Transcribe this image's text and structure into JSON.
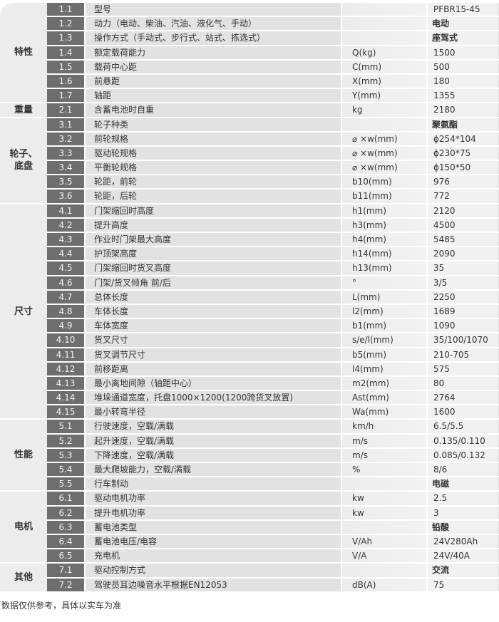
{
  "groups": [
    {
      "label": "特性",
      "rows": [
        [
          "1.1",
          "型号",
          "",
          "PFBR15-45"
        ],
        [
          "1.2",
          "动力（电动、柴油、汽油、液化气、手动）",
          "",
          "电动"
        ],
        [
          "1.3",
          "操作方式（手动式、步行式、站式、拣选式）",
          "",
          "座驾式"
        ],
        [
          "1.4",
          "额定载荷能力",
          "Q(kg)",
          "1500"
        ],
        [
          "1.5",
          "载荷中心距",
          "C(mm)",
          "500"
        ],
        [
          "1.6",
          "前悬距",
          "X(mm)",
          "180"
        ],
        [
          "1.7",
          "轴距",
          "Y(mm)",
          "1355"
        ]
      ]
    },
    {
      "label": "重量",
      "rows": [
        [
          "2.1",
          "含蓄电池时自重",
          "kg",
          "2180"
        ]
      ]
    },
    {
      "label": "轮子、\n底盘",
      "rows": [
        [
          "3.1",
          "轮子种类",
          "",
          "聚氨酯"
        ],
        [
          "3.2",
          "前轮规格",
          "⌀ ×w(mm)",
          "ϕ254*104"
        ],
        [
          "3.3",
          "驱动轮规格",
          "⌀ ×w(mm)",
          "ϕ230*75"
        ],
        [
          "3.4",
          "平衡轮规格",
          "⌀ ×w(mm)",
          "ϕ150*50"
        ],
        [
          "3.5",
          "轮距，前轮",
          "b10(mm)",
          "976"
        ],
        [
          "3.6",
          "轮距，后轮",
          "b11(mm)",
          "772"
        ]
      ]
    },
    {
      "label": "尺寸",
      "rows": [
        [
          "4.1",
          "门架缩回时高度",
          "h1(mm)",
          "2120"
        ],
        [
          "4.2",
          "提升高度",
          "h3(mm)",
          "4500"
        ],
        [
          "4.3",
          "作业时门架最大高度",
          "h4(mm)",
          "5485"
        ],
        [
          "4.4",
          "护顶架高度",
          "h14(mm)",
          "2090"
        ],
        [
          "4.5",
          "门架缩回时货叉高度",
          "h13(mm)",
          "35"
        ],
        [
          "4.6",
          "门架/货叉倾角 前/后",
          "°",
          "3/5"
        ],
        [
          "4.7",
          "总体长度",
          "L(mm)",
          "2250"
        ],
        [
          "4.8",
          "车体长度",
          "l2(mm)",
          "1689"
        ],
        [
          "4.9",
          "车体宽度",
          "b1(mm)",
          "1090"
        ],
        [
          "4.10",
          "货叉尺寸",
          "s/e/l(mm)",
          "35/100/1070"
        ],
        [
          "4.11",
          "货叉调节尺寸",
          "b5(mm)",
          "210-705"
        ],
        [
          "4.12",
          "前移距离",
          "l4(mm)",
          "575"
        ],
        [
          "4.13",
          "最小离地间隙（轴距中心）",
          "m2(mm)",
          "80"
        ],
        [
          "4.14",
          "堆垛通道宽度，托盘1000×1200(1200跨货叉放置)",
          "Ast(mm)",
          "2764"
        ],
        [
          "4.15",
          "最小转弯半径",
          "Wa(mm)",
          "1600"
        ]
      ]
    },
    {
      "label": "性能",
      "rows": [
        [
          "5.1",
          "行驶速度，空载/满载",
          "km/h",
          "6.5/5.5"
        ],
        [
          "5.2",
          "起升速度，空载/满载",
          "m/s",
          "0.135/0.110"
        ],
        [
          "5.3",
          "下降速度，空载/满载",
          "m/s",
          "0.085/0.132"
        ],
        [
          "5.4",
          "最大爬坡能力，空载/满载",
          "%",
          "8/6"
        ],
        [
          "5.5",
          "行车制动",
          "",
          "电磁"
        ]
      ]
    },
    {
      "label": "电机",
      "rows": [
        [
          "6.1",
          "驱动电机功率",
          "kw",
          "2.5"
        ],
        [
          "6.2",
          "提升电机功率",
          "kw",
          "3"
        ],
        [
          "6.3",
          "蓄电池类型",
          "",
          "铅酸"
        ],
        [
          "6.4",
          "蓄电池电压/电容",
          "V/Ah",
          "24V280Ah"
        ],
        [
          "6.5",
          "充电机",
          "V/A",
          "24V/40A"
        ]
      ]
    },
    {
      "label": "其他",
      "rows": [
        [
          "7.1",
          "驱动控制方式",
          "",
          "交流"
        ],
        [
          "7.2",
          "驾驶员耳边噪音水平根据EN12053",
          "dB(A)",
          "75"
        ]
      ]
    }
  ],
  "footnote": "数据仅供参考，具体以实车为准"
}
